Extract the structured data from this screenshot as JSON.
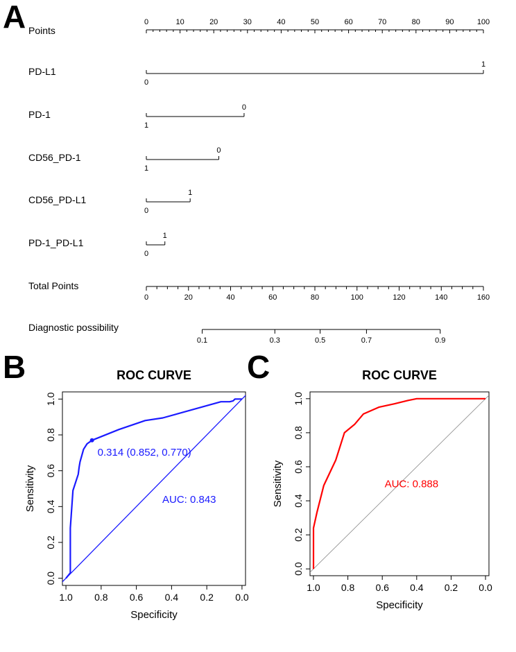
{
  "panel_labels": {
    "a": "A",
    "b": "B",
    "c": "C"
  },
  "chart_data": [
    {
      "type": "nomogram",
      "panel": "A",
      "points_axis": {
        "label": "Points",
        "range": [
          0,
          100
        ],
        "ticks": [
          "0",
          "10",
          "20",
          "30",
          "40",
          "50",
          "60",
          "70",
          "80",
          "90",
          "100"
        ]
      },
      "variables": [
        {
          "name": "PD-L1",
          "range": [
            0,
            100
          ],
          "level_at_start": "0",
          "level_at_end": "1"
        },
        {
          "name": "PD-1",
          "range": [
            0,
            29
          ],
          "level_at_start": "1",
          "level_at_end": "0"
        },
        {
          "name": "CD56_PD-1",
          "range": [
            0,
            21.5
          ],
          "level_at_start": "1",
          "level_at_end": "0"
        },
        {
          "name": "CD56_PD-L1",
          "range": [
            0,
            13
          ],
          "level_at_start": "0",
          "level_at_end": "1"
        },
        {
          "name": "PD-1_PD-L1",
          "range": [
            0,
            5.5
          ],
          "level_at_start": "0",
          "level_at_end": "1"
        }
      ],
      "total_points_axis": {
        "label": "Total Points",
        "range": [
          0,
          160
        ],
        "ticks": [
          "0",
          "20",
          "40",
          "60",
          "80",
          "100",
          "120",
          "140",
          "160"
        ]
      },
      "diagnostic_axis": {
        "label": "Diagnostic possibility",
        "total_points_range": [
          26.5,
          139.5
        ],
        "ticks": [
          {
            "label": "0.1",
            "total_points": 26.5
          },
          {
            "label": "0.3",
            "total_points": 61
          },
          {
            "label": "0.5",
            "total_points": 82.5
          },
          {
            "label": "0.7",
            "total_points": 104.5
          },
          {
            "label": "0.9",
            "total_points": 139.5
          }
        ]
      }
    },
    {
      "type": "line",
      "panel": "B",
      "title": "ROC CURVE",
      "xlabel": "Specificity",
      "ylabel": "Sensitivity",
      "xlim": [
        1.02,
        -0.02
      ],
      "ylim": [
        -0.04,
        1.04
      ],
      "x_ticks": [
        "1.0",
        "0.8",
        "0.6",
        "0.4",
        "0.2",
        "0.0"
      ],
      "y_ticks": [
        "0.0",
        "0.2",
        "0.4",
        "0.6",
        "0.8",
        "1.0"
      ],
      "color": "#1a1aff",
      "series": [
        {
          "name": "ROC",
          "specificity": [
            1.0,
            0.975,
            0.975,
            0.96,
            0.93,
            0.925,
            0.92,
            0.9,
            0.88,
            0.852,
            0.7,
            0.55,
            0.45,
            0.12,
            0.08,
            0.07,
            0.05,
            0.04,
            0.0
          ],
          "sensitivity": [
            0.0,
            0.03,
            0.28,
            0.49,
            0.58,
            0.62,
            0.65,
            0.72,
            0.75,
            0.77,
            0.83,
            0.88,
            0.895,
            0.985,
            0.985,
            0.985,
            0.99,
            1.0,
            1.0
          ]
        }
      ],
      "threshold_point": {
        "specificity": 0.852,
        "sensitivity": 0.77,
        "label": "0.314 (0.852, 0.770)"
      },
      "diagonal": true,
      "annotation": "AUC: 0.843"
    },
    {
      "type": "line",
      "panel": "C",
      "title": "ROC CURVE",
      "xlabel": "Specificity",
      "ylabel": "Sensitivity",
      "xlim": [
        1.02,
        -0.02
      ],
      "ylim": [
        -0.04,
        1.04
      ],
      "x_ticks": [
        "1.0",
        "0.8",
        "0.6",
        "0.4",
        "0.2",
        "0.0"
      ],
      "y_ticks": [
        "0.0",
        "0.2",
        "0.4",
        "0.6",
        "0.8",
        "1.0"
      ],
      "color": "#ff0000",
      "diagonal_color": "#888888",
      "series": [
        {
          "name": "ROC",
          "specificity": [
            1.0,
            1.0,
            0.98,
            0.94,
            0.87,
            0.82,
            0.76,
            0.71,
            0.62,
            0.53,
            0.45,
            0.4,
            0.3,
            0.0
          ],
          "sensitivity": [
            0.0,
            0.24,
            0.33,
            0.49,
            0.64,
            0.8,
            0.85,
            0.91,
            0.95,
            0.97,
            0.99,
            1.0,
            1.0,
            1.0
          ]
        }
      ],
      "diagonal": true,
      "annotation": "AUC: 0.888"
    }
  ]
}
